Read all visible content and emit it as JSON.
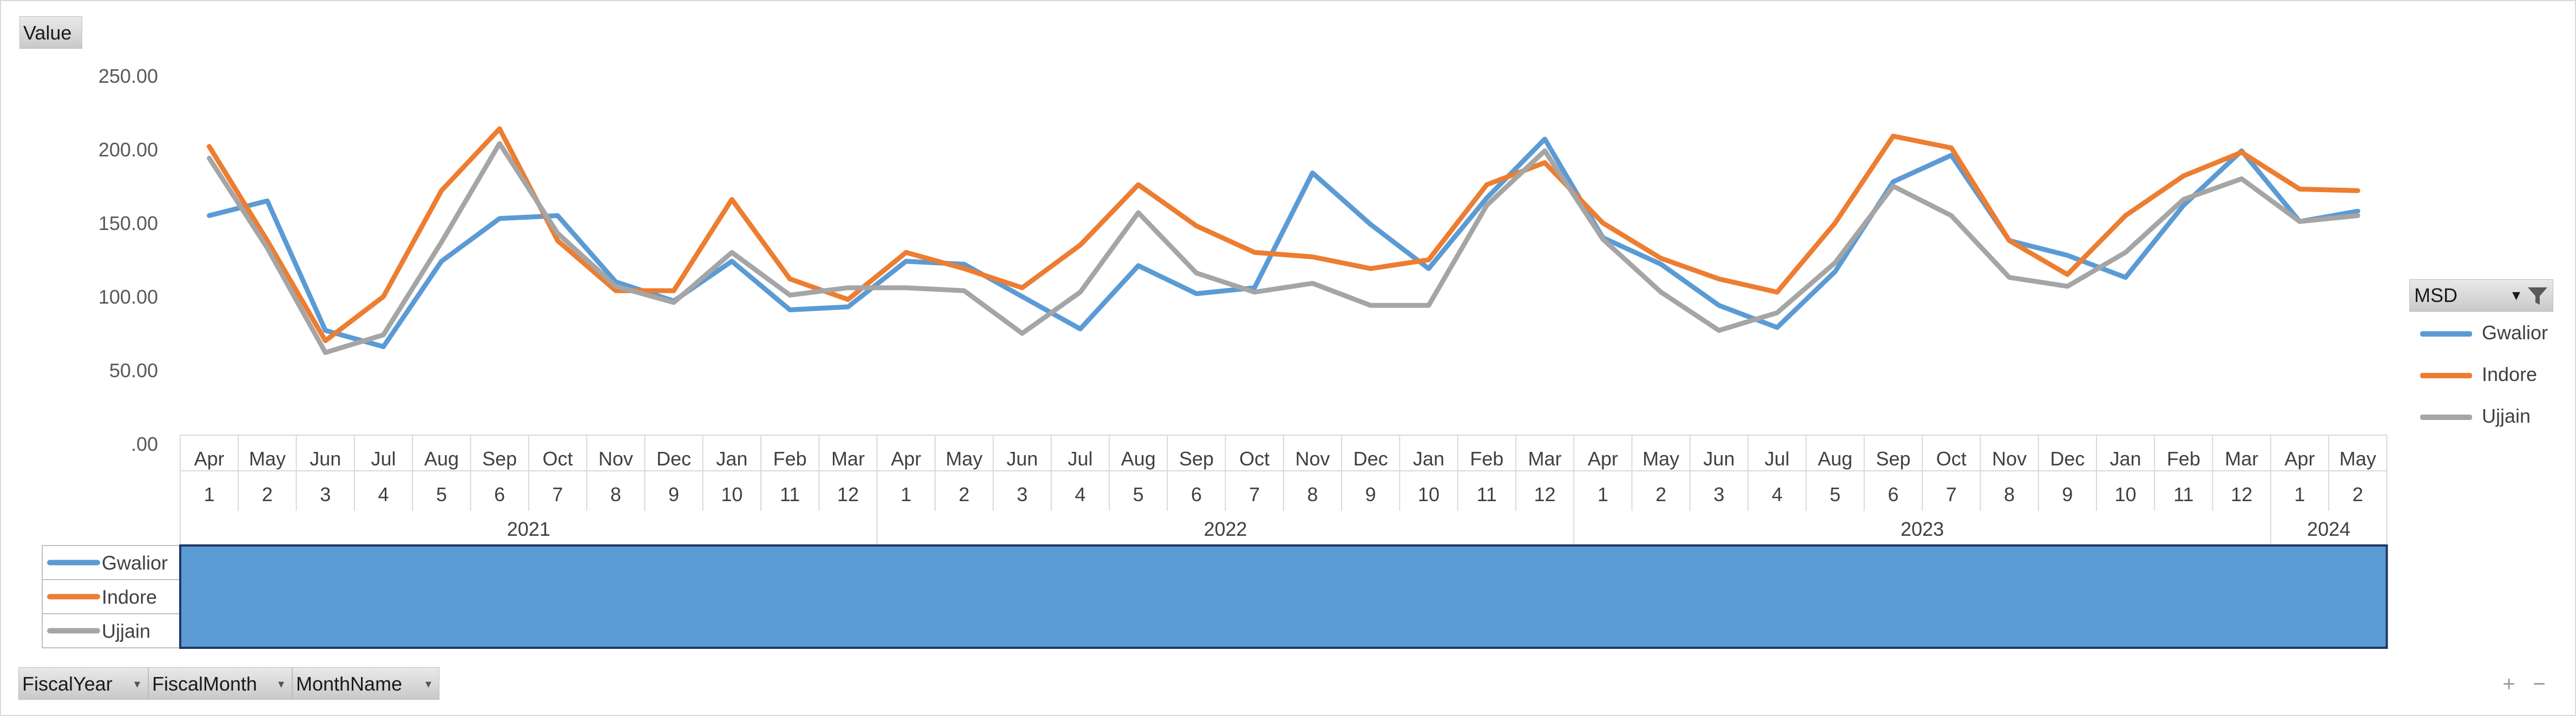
{
  "value_button": "Value",
  "row_fields": [
    {
      "label": "FiscalYear",
      "dropdown": "▾"
    },
    {
      "label": "FiscalMonth",
      "dropdown": "▾"
    },
    {
      "label": "MonthName",
      "dropdown": "▾"
    }
  ],
  "legend": {
    "field": "MSD",
    "filter_icon": "filter-icon",
    "dropdown": "▾"
  },
  "zoom_controls": {
    "plus": "+",
    "minus": "−"
  },
  "colors": {
    "Gwalior": "#5b9bd5",
    "Indore": "#ed7d31",
    "Ujjain": "#a5a5a5",
    "table_fill": "#5b9bd5"
  },
  "chart_data": {
    "type": "line",
    "y_ticks": [
      "250.00",
      "200.00",
      "150.00",
      "100.00",
      "50.00",
      ".00"
    ],
    "ylim": [
      0,
      250
    ],
    "grid": false,
    "legend_position": "right",
    "month_names": [
      "Apr",
      "May",
      "Jun",
      "Jul",
      "Aug",
      "Sep",
      "Oct",
      "Nov",
      "Dec",
      "Jan",
      "Feb",
      "Mar",
      "Apr",
      "May",
      "Jun",
      "Jul",
      "Aug",
      "Sep",
      "Oct",
      "Nov",
      "Dec",
      "Jan",
      "Feb",
      "Mar",
      "Apr",
      "May",
      "Jun",
      "Jul",
      "Aug",
      "Sep",
      "Oct",
      "Nov",
      "Dec",
      "Jan",
      "Feb",
      "Mar",
      "Apr",
      "May"
    ],
    "fiscal_months": [
      "1",
      "2",
      "3",
      "4",
      "5",
      "6",
      "7",
      "8",
      "9",
      "10",
      "11",
      "12",
      "1",
      "2",
      "3",
      "4",
      "5",
      "6",
      "7",
      "8",
      "9",
      "10",
      "11",
      "12",
      "1",
      "2",
      "3",
      "4",
      "5",
      "6",
      "7",
      "8",
      "9",
      "10",
      "11",
      "12",
      "1",
      "2"
    ],
    "fiscal_years": [
      {
        "label": "2021",
        "count": 12
      },
      {
        "label": "2022",
        "count": 12
      },
      {
        "label": "2023",
        "count": 12
      },
      {
        "label": "2024",
        "count": 2
      }
    ],
    "series": [
      {
        "name": "Gwalior",
        "values": [
          155,
          165,
          77,
          66,
          124,
          153,
          155,
          110,
          97,
          124,
          91,
          93,
          124,
          122,
          100,
          78,
          121,
          102,
          106,
          184,
          149,
          119,
          167,
          207,
          140,
          122,
          94,
          79,
          117,
          178,
          196,
          138,
          128,
          113,
          162,
          199,
          151,
          158
        ]
      },
      {
        "name": "Indore",
        "values": [
          202,
          138,
          70,
          100,
          172,
          214,
          138,
          104,
          104,
          166,
          112,
          98,
          130,
          119,
          106,
          135,
          176,
          148,
          130,
          127,
          119,
          125,
          176,
          191,
          150,
          126,
          112,
          103,
          150,
          209,
          201,
          138,
          115,
          155,
          182,
          198,
          173,
          172
        ]
      },
      {
        "name": "Ujjain",
        "values": [
          194,
          133,
          62,
          74,
          137,
          204,
          143,
          107,
          96,
          130,
          101,
          106,
          106,
          104,
          75,
          103,
          157,
          116,
          103,
          109,
          94,
          94,
          162,
          199,
          139,
          103,
          77,
          89,
          123,
          175,
          155,
          113,
          107,
          130,
          166,
          180,
          151,
          155
        ]
      }
    ]
  }
}
